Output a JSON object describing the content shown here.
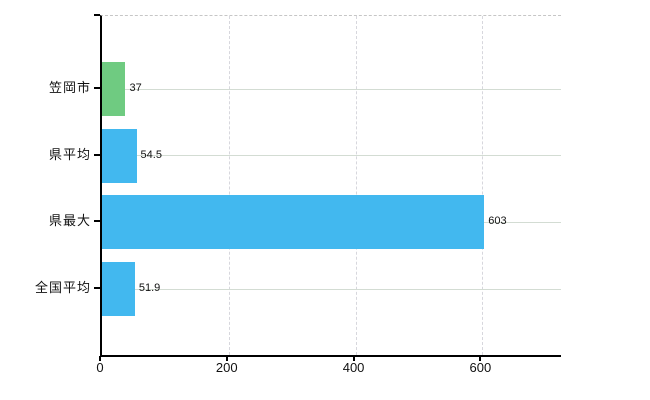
{
  "chart_data": {
    "type": "bar",
    "orientation": "horizontal",
    "title": "",
    "categories": [
      "笠岡市",
      "県平均",
      "県最大",
      "全国平均"
    ],
    "values": [
      37,
      54.5,
      603,
      51.9
    ],
    "value_labels": [
      "37",
      "54.5",
      "603",
      "51.9"
    ],
    "series": [
      {
        "name": "値",
        "values": [
          37,
          54.5,
          603,
          51.9
        ]
      }
    ],
    "bar_colors": [
      "#6fcb81",
      "#42b8ef",
      "#42b8ef",
      "#42b8ef"
    ],
    "x_ticks": [
      0,
      200,
      400,
      600
    ],
    "x_tick_labels": [
      "0",
      "200",
      "400",
      "600"
    ],
    "xlim": [
      0,
      724
    ],
    "grid": true,
    "legend": false
  },
  "colors": {
    "bar_green": "#6fcb81",
    "bar_blue": "#42b8ef",
    "axis": "#000000",
    "h_gridline": "#d3dcd3",
    "v_gridline": "#d7d7dd",
    "top_border": "#c6c6c6",
    "background": "#ffffff",
    "text": "#111111"
  }
}
